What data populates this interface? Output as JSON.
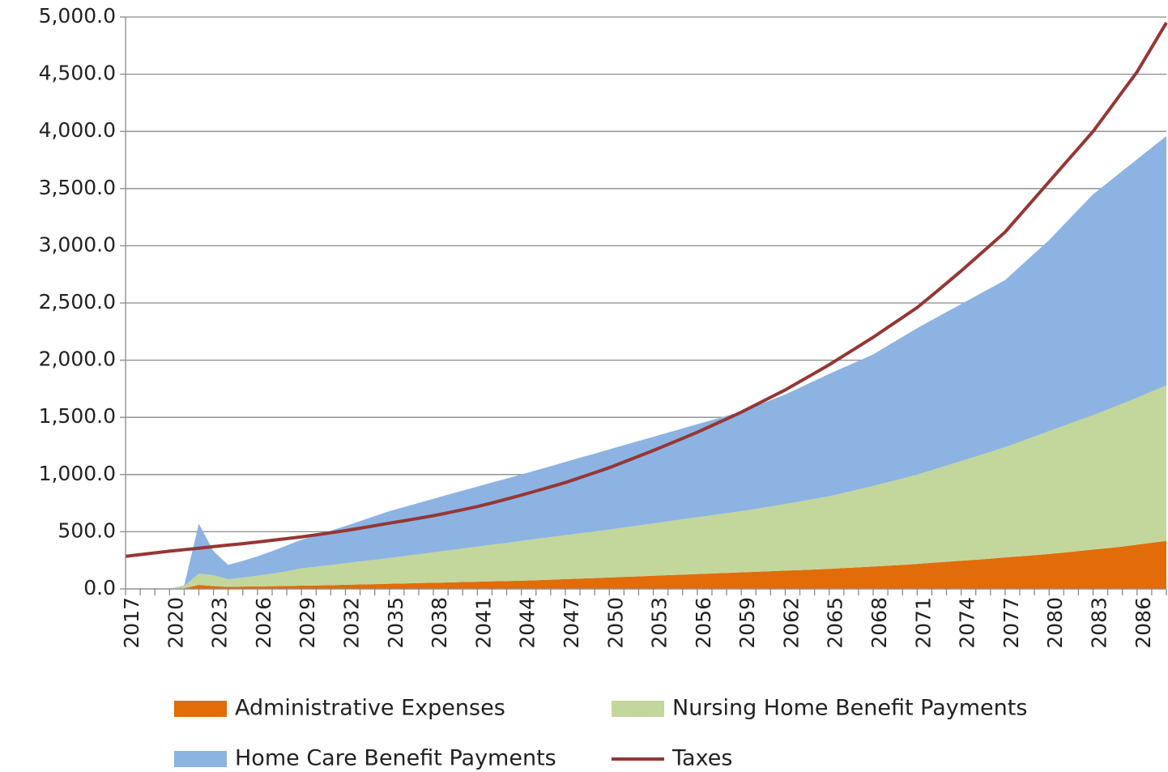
{
  "chart_data": {
    "type": "area",
    "stacked": true,
    "grid": true,
    "categories": [
      "2017",
      null,
      null,
      "2020",
      null,
      null,
      "2023",
      null,
      null,
      "2026",
      null,
      null,
      "2029",
      null,
      null,
      "2032",
      null,
      null,
      "2035",
      null,
      null,
      "2038",
      null,
      null,
      "2041",
      null,
      null,
      "2044",
      null,
      null,
      "2047",
      null,
      null,
      "2050",
      null,
      null,
      "2053",
      null,
      null,
      "2056",
      null,
      null,
      "2059",
      null,
      null,
      "2062",
      null,
      null,
      "2065",
      null,
      null,
      "2068",
      null,
      null,
      "2071",
      null,
      null,
      "2074",
      null,
      null,
      "2077",
      null,
      null,
      "2080",
      null,
      null,
      "2083",
      null,
      null,
      "2086",
      null,
      null
    ],
    "ylim": [
      0,
      5000
    ],
    "yticks": [
      {
        "value": 0,
        "label": "0.0"
      },
      {
        "value": 500,
        "label": "500.0"
      },
      {
        "value": 1000,
        "label": "1,000.0"
      },
      {
        "value": 1500,
        "label": "1,500.0"
      },
      {
        "value": 2000,
        "label": "2,000.0"
      },
      {
        "value": 2500,
        "label": "2,500.0"
      },
      {
        "value": 3000,
        "label": "3,000.0"
      },
      {
        "value": 3500,
        "label": "3,500.0"
      },
      {
        "value": 4000,
        "label": "4,000.0"
      },
      {
        "value": 4500,
        "label": "4,500.0"
      },
      {
        "value": 5000,
        "label": "5,000.0"
      }
    ],
    "series": [
      {
        "name": "Administrative Expenses",
        "type": "area",
        "color": "#e36c0a",
        "values": [
          0,
          0,
          0,
          0,
          5,
          35,
          25,
          18,
          20,
          22,
          24,
          26,
          28,
          30,
          33,
          36,
          39,
          42,
          45,
          48,
          51,
          54,
          57,
          60,
          63,
          66,
          69,
          72,
          76,
          81,
          86,
          90,
          95,
          100,
          105,
          110,
          115,
          120,
          125,
          130,
          135,
          140,
          145,
          150,
          155,
          160,
          165,
          170,
          175,
          182,
          189,
          196,
          203,
          210,
          219,
          228,
          237,
          246,
          255,
          265,
          275,
          285,
          295,
          305,
          318,
          331,
          344,
          357,
          370,
          387,
          404,
          420
        ]
      },
      {
        "name": "Nursing Home Benefit Payments",
        "type": "area",
        "color": "#c3d69b",
        "values": [
          0,
          0,
          0,
          0,
          20,
          100,
          95,
          67,
          80,
          93,
          111,
          129,
          152,
          165,
          177,
          189,
          201,
          213,
          225,
          239,
          253,
          266,
          280,
          293,
          307,
          321,
          334,
          348,
          361,
          372,
          384,
          397,
          408,
          420,
          432,
          445,
          458,
          471,
          484,
          497,
          510,
          522,
          535,
          550,
          566,
          583,
          600,
          617,
          635,
          658,
          681,
          704,
          730,
          756,
          781,
          810,
          841,
          872,
          903,
          934,
          965,
          1000,
          1037,
          1075,
          1108,
          1142,
          1176,
          1213,
          1250,
          1285,
          1322,
          1360
        ]
      },
      {
        "name": "Home Care Benefit Payments",
        "type": "area",
        "color": "#8db3e2",
        "values": [
          0,
          0,
          0,
          0,
          5,
          435,
          210,
          125,
          145,
          170,
          195,
          225,
          250,
          275,
          300,
          325,
          353,
          382,
          410,
          429,
          448,
          468,
          487,
          507,
          525,
          543,
          562,
          580,
          600,
          620,
          640,
          660,
          680,
          700,
          720,
          738,
          757,
          776,
          794,
          813,
          832,
          851,
          870,
          900,
          929,
          957,
          995,
          1033,
          1070,
          1097,
          1123,
          1150,
          1194,
          1237,
          1280,
          1312,
          1342,
          1372,
          1402,
          1431,
          1460,
          1532,
          1601,
          1670,
          1757,
          1844,
          1930,
          1982,
          2034,
          2084,
          2132,
          2180
        ]
      },
      {
        "name": "Taxes",
        "type": "line",
        "color": "#953735",
        "values": [
          285,
          300,
          315,
          330,
          343,
          356,
          370,
          383,
          396,
          410,
          425,
          440,
          455,
          473,
          491,
          510,
          531,
          553,
          575,
          596,
          618,
          640,
          666,
          693,
          720,
          752,
          786,
          820,
          856,
          893,
          930,
          973,
          1016,
          1060,
          1110,
          1160,
          1210,
          1263,
          1316,
          1370,
          1428,
          1486,
          1545,
          1610,
          1675,
          1740,
          1813,
          1886,
          1960,
          2040,
          2120,
          2200,
          2287,
          2373,
          2460,
          2565,
          2672,
          2780,
          2893,
          3006,
          3120,
          3267,
          3413,
          3560,
          3707,
          3853,
          4000,
          4173,
          4347,
          4520,
          4735,
          4950
        ]
      }
    ]
  }
}
